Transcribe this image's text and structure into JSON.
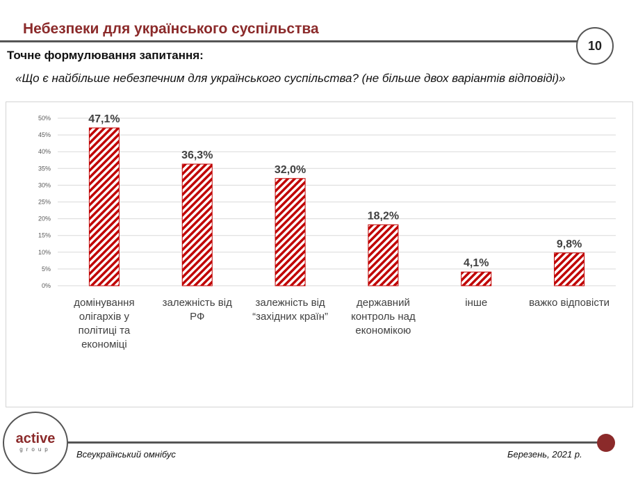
{
  "header": {
    "title": "Небезпеки для українського суспільства",
    "page_number": "10"
  },
  "question": {
    "label": "Точне формулювання запитання:",
    "text": "«Що є найбільше небезпечним для українського суспільства? (не більше двох варіантів відповіді)»"
  },
  "footer": {
    "left": "Всеукраїнський омнібус",
    "right": "Березень, 2021 р.",
    "logo": "active group"
  },
  "colors": {
    "accent": "#8b2a2a",
    "bar": "#c00000"
  },
  "chart_data": {
    "type": "bar",
    "categories": [
      "домінування олігархів у політиці та економіці",
      "залежність від РФ",
      "залежність від “західних країн”",
      "державний контроль над економікою",
      "інше",
      "важко відповісти"
    ],
    "category_lines": [
      [
        "домінування",
        "олігархів у",
        "політиці та",
        "економіці"
      ],
      [
        "залежність від",
        "РФ"
      ],
      [
        "залежність від",
        "“західних країн”"
      ],
      [
        "державний",
        "контроль над",
        "економікою"
      ],
      [
        "інше"
      ],
      [
        "важко відповісти"
      ]
    ],
    "values": [
      47.1,
      36.3,
      32.0,
      18.2,
      4.1,
      9.8
    ],
    "data_labels": [
      "47,1%",
      "36,3%",
      "32,0%",
      "18,2%",
      "4,1%",
      "9,8%"
    ],
    "ylim": [
      0,
      50
    ],
    "yticks": [
      "0%",
      "5%",
      "10%",
      "15%",
      "20%",
      "25%",
      "30%",
      "35%",
      "40%",
      "45%",
      "50%"
    ],
    "grid": true,
    "bar_fill": "diagonal red/white hatch"
  }
}
